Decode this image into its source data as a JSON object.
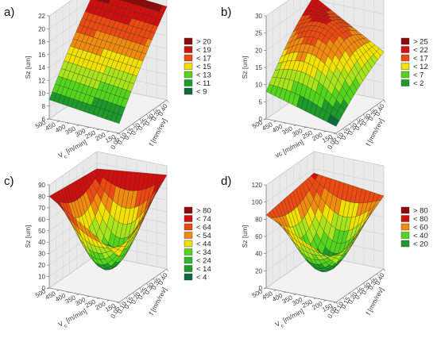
{
  "chart_data": [
    {
      "type": "surface3d",
      "panel_label": "a)",
      "x": {
        "label": "V",
        "sub": "c",
        "unit": "[m/min]",
        "ticks": [
          150,
          200,
          250,
          300,
          350,
          400,
          450,
          500
        ]
      },
      "y": {
        "label": "f [mm/rev]",
        "ticks": [
          "0.05",
          "0.10",
          "0.15",
          "0.20",
          "0.25",
          "0.30",
          "0.35",
          "0.40"
        ]
      },
      "z": {
        "label": "Sz [um]",
        "ticks": [
          6,
          8,
          10,
          12,
          14,
          16,
          18,
          20,
          22
        ],
        "lim": [
          6,
          22
        ]
      },
      "corners": {
        "v150_f005": 7.5,
        "v150_f040": 20.5,
        "v500_f005": 9.0,
        "v500_f040": 21.5
      },
      "legend": [
        {
          "label": "> 20",
          "color": "#8e0b0b"
        },
        {
          "label": "< 19",
          "color": "#d10f0f"
        },
        {
          "label": "< 17",
          "color": "#ec4a12"
        },
        {
          "label": "< 15",
          "color": "#f1e000"
        },
        {
          "label": "< 13",
          "color": "#55d41e"
        },
        {
          "label": "< 11",
          "color": "#1c9a2a"
        },
        {
          "label": "< 9",
          "color": "#0f6b3e"
        }
      ]
    },
    {
      "type": "surface3d",
      "panel_label": "b)",
      "x": {
        "label": "vc [m/min]",
        "ticks": [
          150,
          200,
          250,
          300,
          350,
          400,
          450,
          500
        ]
      },
      "y": {
        "label": "f [mm/rev]",
        "ticks": [
          "0.05",
          "0.10",
          "0.15",
          "0.20",
          "0.25",
          "0.30",
          "0.35",
          "0.40"
        ]
      },
      "z": {
        "label": "Sz [um]",
        "ticks": [
          0,
          5,
          10,
          15,
          20,
          25,
          30
        ],
        "lim": [
          0,
          30
        ]
      },
      "corners": {
        "v150_f005": 2,
        "v150_f040": 14,
        "v500_f005": 8,
        "v500_f040": 26
      },
      "legend": [
        {
          "label": "> 25",
          "color": "#8e0b0b"
        },
        {
          "label": "< 22",
          "color": "#d10f0f"
        },
        {
          "label": "< 17",
          "color": "#ec4a12"
        },
        {
          "label": "< 12",
          "color": "#f1e000"
        },
        {
          "label": "< 7",
          "color": "#55d41e"
        },
        {
          "label": "< 2",
          "color": "#1c9a2a"
        }
      ]
    },
    {
      "type": "surface3d",
      "panel_label": "c)",
      "x": {
        "label": "V",
        "sub": "c",
        "unit": "[m/min]",
        "ticks": [
          150,
          200,
          250,
          300,
          350,
          400,
          450,
          500
        ]
      },
      "y": {
        "label": "f [mm/rev]",
        "ticks": [
          "0.05",
          "0.10",
          "0.15",
          "0.20",
          "0.25",
          "0.30",
          "0.35",
          "0.40"
        ]
      },
      "z": {
        "label": "Sz [um]",
        "ticks": [
          0,
          10,
          20,
          30,
          40,
          50,
          60,
          70,
          80,
          90
        ],
        "lim": [
          0,
          90
        ]
      },
      "corners": {
        "v150_f005": 40,
        "v150_f040": 82,
        "v500_f005": 80,
        "v500_f040": 75
      },
      "legend": [
        {
          "label": "> 80",
          "color": "#8e0b0b"
        },
        {
          "label": "< 74",
          "color": "#d10f0f"
        },
        {
          "label": "< 64",
          "color": "#ec4a12"
        },
        {
          "label": "< 54",
          "color": "#f28a10"
        },
        {
          "label": "< 44",
          "color": "#f1e000"
        },
        {
          "label": "< 34",
          "color": "#55d41e"
        },
        {
          "label": "< 24",
          "color": "#2fb92a"
        },
        {
          "label": "< 14",
          "color": "#1c9a2a"
        },
        {
          "label": "< 4",
          "color": "#0f6b3e"
        }
      ]
    },
    {
      "type": "surface3d",
      "panel_label": "d)",
      "x": {
        "label": "V",
        "sub": "c",
        "unit": "[m/min]",
        "ticks": [
          150,
          200,
          250,
          300,
          350,
          400,
          450,
          500
        ]
      },
      "y": {
        "label": "f [mm/rev]",
        "ticks": [
          "0.05",
          "0.10",
          "0.15",
          "0.20",
          "0.25",
          "0.30",
          "0.35",
          "0.40"
        ]
      },
      "z": {
        "label": "Sz [um]",
        "ticks": [
          0,
          20,
          40,
          60,
          80,
          100,
          120
        ],
        "lim": [
          0,
          120
        ]
      },
      "corners": {
        "v150_f005": 45,
        "v150_f040": 85,
        "v500_f005": 85,
        "v500_f040": 95
      },
      "legend": [
        {
          "label": "> 80",
          "color": "#8e0b0b"
        },
        {
          "label": "< 80",
          "color": "#d10f0f"
        },
        {
          "label": "< 60",
          "color": "#f28a10"
        },
        {
          "label": "< 40",
          "color": "#55d41e"
        },
        {
          "label": "< 20",
          "color": "#1c9a2a"
        }
      ]
    }
  ]
}
